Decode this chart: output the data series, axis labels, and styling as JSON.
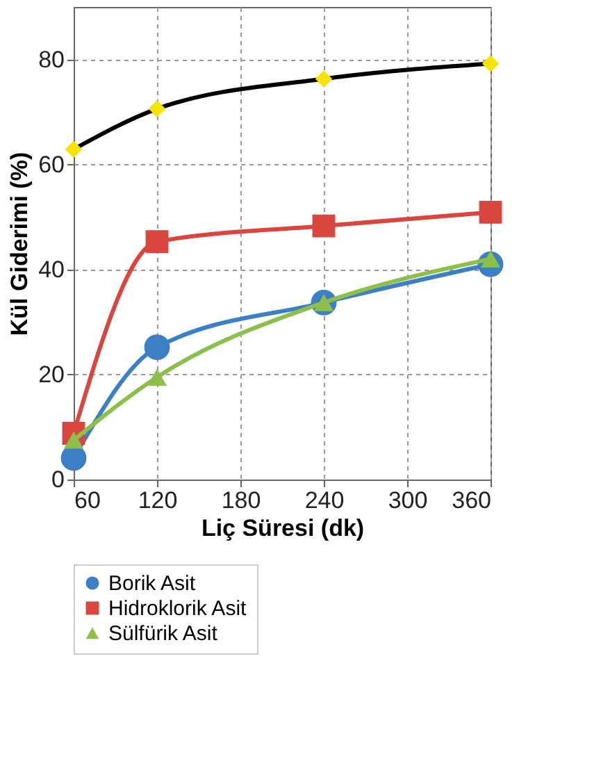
{
  "chart_data": {
    "type": "line",
    "xlabel": "Liç Süresi (dk)",
    "ylabel": "Kül Giderimi (%)",
    "x": [
      60,
      120,
      240,
      360
    ],
    "xlim": [
      60,
      360
    ],
    "xticks": [
      60,
      120,
      180,
      240,
      300,
      360
    ],
    "ylim": [
      0,
      90
    ],
    "yticks": [
      0,
      20,
      40,
      60,
      80
    ],
    "grid": true,
    "legend": "bottom",
    "line_style": "solid",
    "series": [
      {
        "name": "Borik Asit",
        "color": "#3b7fc4",
        "marker": "circle",
        "values": [
          4.1,
          25.2,
          33.7,
          41.0
        ]
      },
      {
        "name": "Hidroklorik Asit",
        "color": "#d9463e",
        "marker": "square",
        "values": [
          8.8,
          45.3,
          48.3,
          50.9
        ]
      },
      {
        "name": "Sülfürik Asit",
        "color": "#8dc04a",
        "marker": "triangle",
        "values": [
          7.5,
          19.5,
          33.7,
          42.0
        ]
      },
      {
        "color": "#000000",
        "colors": [
          "#f5e400",
          "#f5e400",
          "#f5e400",
          "#f5e400"
        ],
        "marker": "diamond",
        "values": [
          62.9,
          70.6,
          76.3,
          79.2
        ]
      }
    ]
  }
}
